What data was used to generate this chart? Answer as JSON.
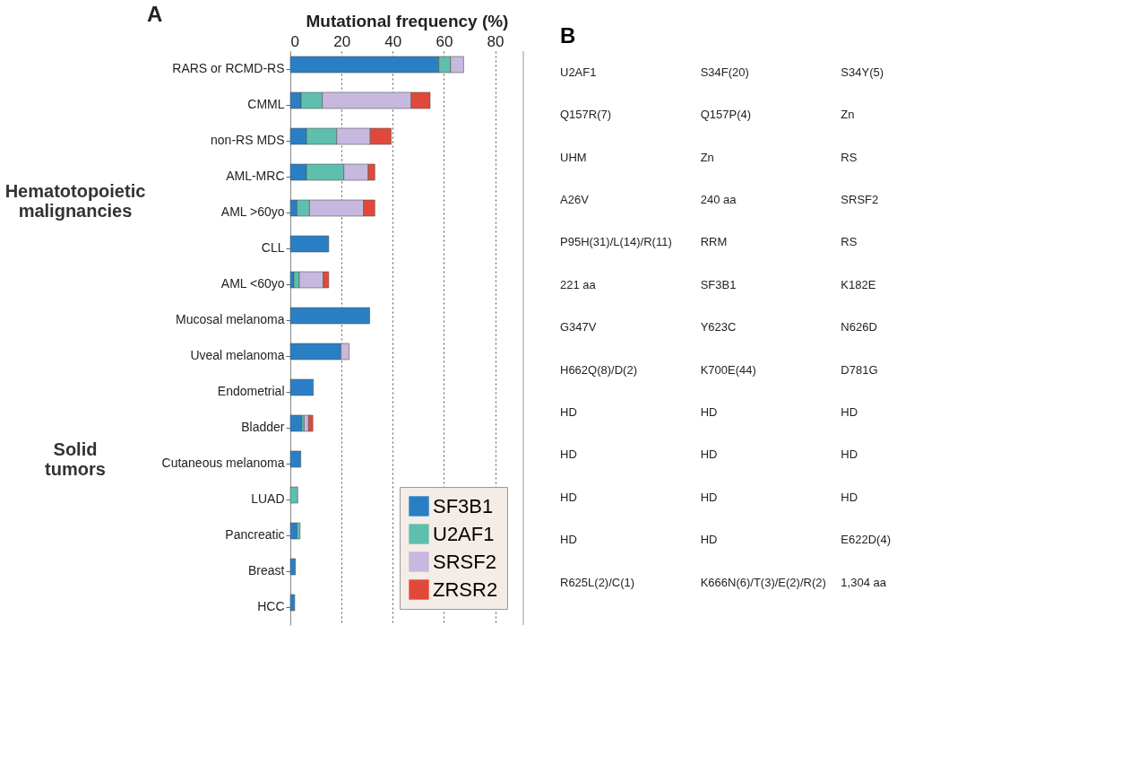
{
  "chart_data": [
    {
      "type": "bar",
      "title": "A",
      "xlabel": "Mutational frequency (%)",
      "orientation": "horizontal",
      "stacked": true,
      "categories": [
        "RARS or RCMD-RS",
        "CMML",
        "non-RS MDS",
        "AML-MRC",
        "AML >60yo",
        "CLL",
        "AML <60yo",
        "Mucosal melanoma",
        "Uveal melanoma",
        "Endometrial",
        "Bladder",
        "Cutaneous melanoma",
        "LUAD",
        "Pancreatic",
        "Breast",
        "HCC"
      ],
      "series": [
        {
          "name": "SF3B1",
          "color": "#2a7fc4",
          "values": [
            58.0,
            4.2,
            6.3,
            6.3,
            2.6,
            15.0,
            1.4,
            31.0,
            19.8,
            9.0,
            4.5,
            4.1,
            null,
            2.6,
            2.0,
            1.7
          ]
        },
        {
          "name": "U2AF1",
          "color": "#5fbfae",
          "values": [
            4.6,
            8.3,
            11.8,
            14.6,
            4.9,
            null,
            2.1,
            null,
            null,
            null,
            0.9,
            null,
            2.9,
            1.2,
            null,
            null
          ]
        },
        {
          "name": "SRSF2",
          "color": "#c7b8e0",
          "values": [
            5.1,
            34.7,
            13.1,
            9.5,
            21.1,
            null,
            9.3,
            null,
            3.2,
            null,
            1.7,
            null,
            null,
            null,
            null,
            null
          ]
        },
        {
          "name": "ZRSR2",
          "color": "#e0493a",
          "values": [
            null,
            7.4,
            8.2,
            2.6,
            4.4,
            null,
            2.2,
            null,
            null,
            null,
            1.7,
            null,
            null,
            null,
            null,
            null
          ]
        }
      ],
      "xlim": [
        0,
        91
      ],
      "xticks": [
        0,
        20,
        40,
        60,
        80
      ],
      "grid": "x",
      "legend": "bottom right",
      "annotations": [
        "Hematotopoietic malignancies",
        "Solid tumors"
      ]
    },
    {
      "type": "other",
      "title": "B",
      "annotations": [
        "U2AF1",
        "S34F(20)",
        "S34Y(5)",
        "Q157R(7)",
        "Q157P(4)",
        "Zn",
        "UHM",
        "Zn",
        "RS",
        "A26V",
        "240 aa",
        "SRSF2",
        "P95H(31)/L(14)/R(11)",
        "RRM",
        "RS",
        "221 aa",
        "SF3B1",
        "K182E",
        "G347V",
        "Y623C",
        "N626D",
        "H662Q(8)/D(2)",
        "K700E(44)",
        "D781G",
        "HD",
        "HD",
        "HD",
        "HD",
        "HD",
        "HD",
        "HD",
        "HD",
        "HD",
        "HD",
        "HD",
        "E622D(4)",
        "R625L(2)/C(1)",
        "K666N(6)/T(3)/E(2)/R(2)",
        "1,304 aa"
      ]
    }
  ]
}
